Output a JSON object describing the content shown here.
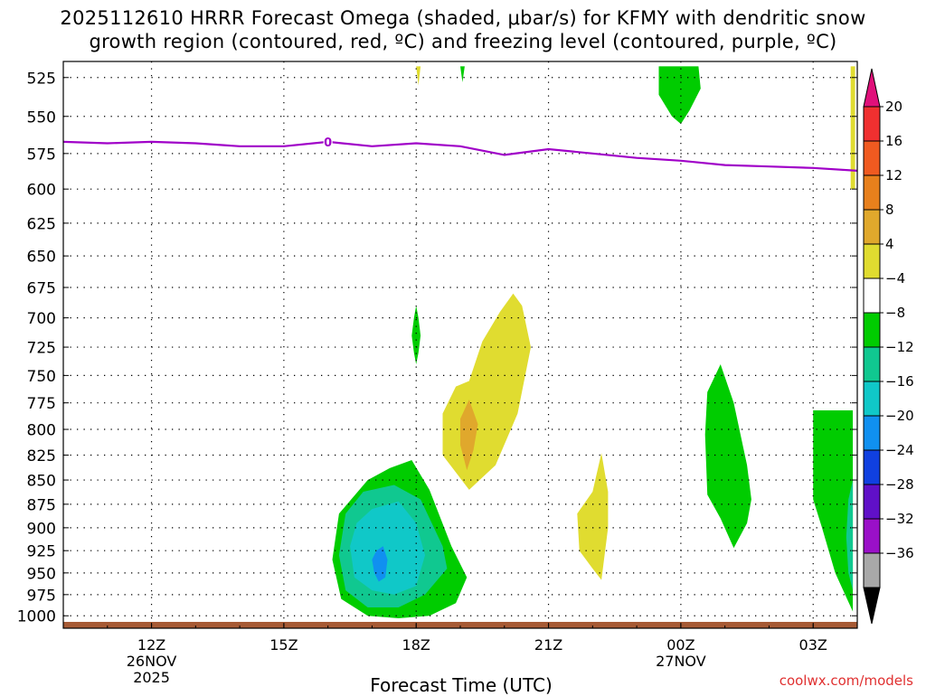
{
  "chart_data": {
    "type": "heatmap",
    "title_line1": "2025112610 HRRR Forecast Omega (shaded, μbar/s) for KFMY with dendritic snow",
    "title_line2": "growth region (contoured, red, ºC) and freezing level (contoured, purple, ºC)",
    "xlabel": "Forecast Time (UTC)",
    "x_range_hours": [
      10,
      28
    ],
    "x_ticks": [
      {
        "hour": 12,
        "label": "12Z",
        "sub1": "26NOV",
        "sub2": "2025"
      },
      {
        "hour": 15,
        "label": "15Z",
        "sub1": "",
        "sub2": ""
      },
      {
        "hour": 18,
        "label": "18Z",
        "sub1": "",
        "sub2": ""
      },
      {
        "hour": 21,
        "label": "21Z",
        "sub1": "",
        "sub2": ""
      },
      {
        "hour": 24,
        "label": "00Z",
        "sub1": "27NOV",
        "sub2": ""
      },
      {
        "hour": 27,
        "label": "03Z",
        "sub1": "",
        "sub2": ""
      }
    ],
    "y_levels_hpa": [
      "525",
      "550",
      "575",
      "600",
      "625",
      "650",
      "675",
      "700",
      "725",
      "750",
      "775",
      "800",
      "825",
      "850",
      "875",
      "900",
      "925",
      "950",
      "975",
      "1000"
    ],
    "y_range_hpa": [
      515,
      1015
    ],
    "y_scale": "log",
    "freezing_level": {
      "label": "0",
      "color": "#a000c8",
      "hours": [
        10,
        11,
        12,
        13,
        14,
        15,
        16,
        17,
        18,
        19,
        20,
        21,
        22,
        23,
        24,
        25,
        26,
        27,
        28
      ],
      "pressure_hpa": [
        567,
        568,
        567,
        568,
        570,
        570,
        567,
        570,
        568,
        570,
        576,
        572,
        575,
        578,
        580,
        583,
        584,
        585,
        587
      ]
    },
    "colorbar": {
      "labels": [
        "20",
        "16",
        "12",
        "8",
        "4",
        "−4",
        "−8",
        "−12",
        "−16",
        "−20",
        "−24",
        "−28",
        "−32",
        "−36"
      ],
      "top_cap_color": "#e0107a",
      "bottom_cap_color": "#000000",
      "colors": [
        "#f03030",
        "#f05a20",
        "#e8801c",
        "#e0a82c",
        "#e0dc30",
        "#ffffff",
        "#00cc00",
        "#10c890",
        "#10c8c8",
        "#1090f0",
        "#1040e0",
        "#6010c8",
        "#9a10c8",
        "#a8a8a8"
      ]
    },
    "shaded_regions": [
      {
        "value": 6,
        "color": "#e0dc30",
        "points": [
          [
            18.0,
            518
          ],
          [
            18.05,
            530
          ],
          [
            18.1,
            518
          ]
        ]
      },
      {
        "value": -6,
        "color": "#00cc00",
        "points": [
          [
            19.0,
            518
          ],
          [
            19.05,
            528
          ],
          [
            19.1,
            518
          ]
        ]
      },
      {
        "value": -6,
        "color": "#00cc00",
        "points": [
          [
            23.5,
            518
          ],
          [
            23.5,
            536
          ],
          [
            23.8,
            550
          ],
          [
            24.0,
            555
          ],
          [
            24.2,
            546
          ],
          [
            24.45,
            532
          ],
          [
            24.4,
            518
          ]
        ]
      },
      {
        "value": 6,
        "color": "#e0dc30",
        "points": [
          [
            27.85,
            518
          ],
          [
            27.85,
            600
          ],
          [
            27.95,
            600
          ],
          [
            27.95,
            518
          ]
        ]
      },
      {
        "value": -6,
        "color": "#00cc00",
        "points": [
          [
            17.9,
            715
          ],
          [
            17.95,
            700
          ],
          [
            18.0,
            690
          ],
          [
            18.05,
            700
          ],
          [
            18.1,
            715
          ],
          [
            18.05,
            730
          ],
          [
            18.0,
            740
          ],
          [
            17.95,
            730
          ]
        ]
      },
      {
        "value": 6,
        "color": "#e0dc30",
        "points": [
          [
            19.2,
            755
          ],
          [
            19.5,
            720
          ],
          [
            19.9,
            695
          ],
          [
            20.2,
            680
          ],
          [
            20.4,
            690
          ],
          [
            20.6,
            725
          ],
          [
            20.3,
            785
          ],
          [
            19.8,
            835
          ],
          [
            19.2,
            860
          ],
          [
            18.6,
            825
          ],
          [
            18.6,
            785
          ],
          [
            18.9,
            760
          ]
        ]
      },
      {
        "value": 10,
        "color": "#e0a82c",
        "points": [
          [
            19.0,
            790
          ],
          [
            19.2,
            772
          ],
          [
            19.4,
            795
          ],
          [
            19.3,
            820
          ],
          [
            19.15,
            840
          ],
          [
            19.0,
            815
          ]
        ]
      },
      {
        "value": 6,
        "color": "#e0dc30",
        "points": [
          [
            22.0,
            862
          ],
          [
            22.2,
            823
          ],
          [
            22.35,
            862
          ],
          [
            22.35,
            900
          ],
          [
            22.2,
            958
          ],
          [
            22.0,
            945
          ],
          [
            21.7,
            925
          ],
          [
            21.65,
            885
          ]
        ]
      },
      {
        "value": -6,
        "color": "#00cc00",
        "points": [
          [
            24.6,
            765
          ],
          [
            24.9,
            740
          ],
          [
            25.2,
            775
          ],
          [
            25.5,
            835
          ],
          [
            25.6,
            870
          ],
          [
            25.5,
            895
          ],
          [
            25.2,
            922
          ],
          [
            24.9,
            890
          ],
          [
            24.6,
            865
          ],
          [
            24.55,
            805
          ]
        ]
      },
      {
        "value": -6,
        "color": "#00cc00",
        "points": [
          [
            27.0,
            782
          ],
          [
            27.9,
            782
          ],
          [
            27.9,
            995
          ],
          [
            27.5,
            950
          ],
          [
            27.2,
            900
          ],
          [
            27.0,
            870
          ]
        ]
      },
      {
        "value": -10,
        "color": "#10c890",
        "points": [
          [
            27.8,
            870
          ],
          [
            27.9,
            850
          ],
          [
            27.9,
            970
          ],
          [
            27.8,
            950
          ],
          [
            27.75,
            910
          ]
        ]
      },
      {
        "value": -6,
        "color": "#00cc00",
        "points": [
          [
            16.9,
            850
          ],
          [
            17.4,
            838
          ],
          [
            17.9,
            830
          ],
          [
            18.3,
            860
          ],
          [
            18.8,
            920
          ],
          [
            19.15,
            955
          ],
          [
            18.9,
            985
          ],
          [
            18.3,
            1000
          ],
          [
            17.6,
            1003
          ],
          [
            16.9,
            1000
          ],
          [
            16.3,
            980
          ],
          [
            16.1,
            935
          ],
          [
            16.25,
            885
          ]
        ]
      },
      {
        "value": -10,
        "color": "#10c890",
        "points": [
          [
            16.8,
            862
          ],
          [
            17.5,
            855
          ],
          [
            18.1,
            870
          ],
          [
            18.6,
            920
          ],
          [
            18.7,
            945
          ],
          [
            18.2,
            975
          ],
          [
            17.6,
            990
          ],
          [
            16.9,
            990
          ],
          [
            16.4,
            970
          ],
          [
            16.25,
            930
          ],
          [
            16.4,
            885
          ]
        ]
      },
      {
        "value": -14,
        "color": "#10c8c8",
        "points": [
          [
            17.0,
            880
          ],
          [
            17.6,
            872
          ],
          [
            18.0,
            895
          ],
          [
            18.2,
            930
          ],
          [
            18.0,
            965
          ],
          [
            17.5,
            975
          ],
          [
            17.0,
            970
          ],
          [
            16.6,
            955
          ],
          [
            16.5,
            920
          ],
          [
            16.65,
            895
          ]
        ]
      },
      {
        "value": -18,
        "color": "#1090f0",
        "points": [
          [
            17.1,
            925
          ],
          [
            17.25,
            920
          ],
          [
            17.35,
            935
          ],
          [
            17.3,
            955
          ],
          [
            17.15,
            960
          ],
          [
            17.05,
            950
          ],
          [
            17.0,
            935
          ]
        ]
      }
    ],
    "surface_color": "#a65a35"
  },
  "watermark": "coolwx.com/models"
}
